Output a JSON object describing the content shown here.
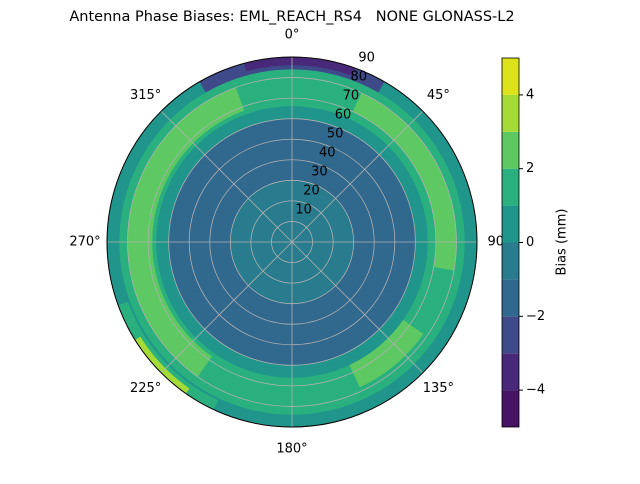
{
  "chart_data": {
    "type": "polar-contour",
    "title": "Antenna Phase Biases: EML_REACH_RS4   NONE GLONASS-L2",
    "rlim": [
      0,
      90
    ],
    "rticks": [
      10,
      20,
      30,
      40,
      50,
      60,
      70,
      80,
      90
    ],
    "thetaticks": [
      {
        "value": 0,
        "label": "0°"
      },
      {
        "value": 45,
        "label": "45°"
      },
      {
        "value": 90,
        "label": "90°"
      },
      {
        "value": 135,
        "label": "135°"
      },
      {
        "value": 180,
        "label": "180°"
      },
      {
        "value": 225,
        "label": "225°"
      },
      {
        "value": 270,
        "label": "270°"
      },
      {
        "value": 315,
        "label": "315°"
      }
    ],
    "grid": true,
    "colorbar": {
      "label": "Bias (mm)",
      "levels": [
        -5,
        -4,
        -3,
        -2,
        -1,
        0,
        1,
        2,
        3,
        4,
        5
      ],
      "colors": [
        "#471365",
        "#482979",
        "#3e4a89",
        "#31688e",
        "#287c8e",
        "#1f958b",
        "#2ab07f",
        "#5ec962",
        "#a5db36",
        "#dde318"
      ],
      "ticks": [
        {
          "value": -4,
          "label": "−4"
        },
        {
          "value": -2,
          "label": "−2"
        },
        0,
        2,
        4
      ]
    },
    "regions": [
      {
        "level": 0,
        "r": [
          0,
          90
        ],
        "az": [
          0,
          360
        ]
      },
      {
        "level": 1,
        "r": [
          66,
          84
        ],
        "az": [
          0,
          360
        ]
      },
      {
        "level": 2,
        "r": [
          68,
          80
        ],
        "az": [
          215,
          340
        ]
      },
      {
        "level": 2,
        "r": [
          70,
          80
        ],
        "az": [
          25,
          100
        ]
      },
      {
        "level": 2,
        "r": [
          66,
          78
        ],
        "az": [
          125,
          155
        ]
      },
      {
        "level": 0,
        "r": [
          60,
          66
        ],
        "az": [
          0,
          360
        ]
      },
      {
        "level": -2,
        "r": [
          30,
          60
        ],
        "az": [
          0,
          360
        ]
      },
      {
        "level": -1,
        "r": [
          0,
          30
        ],
        "az": [
          0,
          360
        ]
      },
      {
        "level": -3,
        "r": [
          84,
          90
        ],
        "az": [
          330,
          390
        ]
      },
      {
        "level": -4,
        "r": [
          86,
          90
        ],
        "az": [
          345,
          380
        ]
      },
      {
        "level": 1,
        "r": [
          85,
          90
        ],
        "az": [
          205,
          250
        ]
      },
      {
        "level": 3,
        "r": [
          87,
          90
        ],
        "az": [
          215,
          238
        ]
      }
    ]
  }
}
